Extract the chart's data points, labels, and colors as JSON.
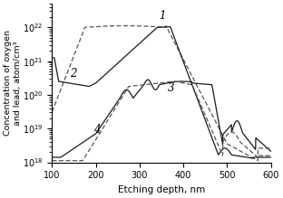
{
  "title": "",
  "xlabel": "Etching depth, nm",
  "ylabel": "Concentration of oxygen\nand lead, atom/cm³",
  "xlim": [
    100,
    600
  ],
  "xticks": [
    100,
    200,
    300,
    400,
    500,
    600
  ],
  "background_color": "#ffffff",
  "line_color_solid": "#1a1a1a",
  "line_color_dashed": "#555555",
  "label1": "1",
  "label2": "2",
  "label3": "3",
  "label4": "4"
}
